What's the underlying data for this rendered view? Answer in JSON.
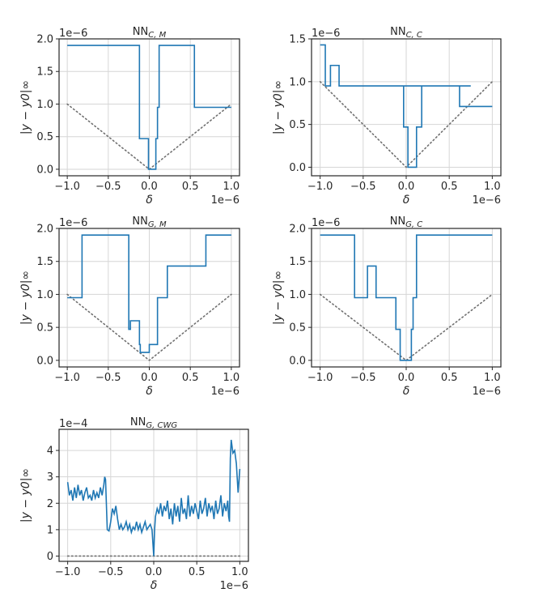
{
  "figure": {
    "background": "#ffffff",
    "line_color": "#1f77b4",
    "ref_color": "#707070",
    "grid_color": "#d6d6d6"
  },
  "chart_data": [
    {
      "id": "nn-c-m",
      "type": "line",
      "title_base": "NN",
      "title_sub": "C, M",
      "xlabel": "δ",
      "ylabel": "|y − y0|∞",
      "x_exponent": "1e−6",
      "y_exponent": "1e−6",
      "xlim": [
        -1.1,
        1.1
      ],
      "ylim": [
        -0.1,
        2.0
      ],
      "xticks": [
        -1.0,
        -0.5,
        0.0,
        0.5,
        1.0
      ],
      "xtick_labels": [
        "−1.0",
        "−0.5",
        "0.0",
        "0.5",
        "1.0"
      ],
      "yticks": [
        0.0,
        0.5,
        1.0,
        1.5,
        2.0
      ],
      "ytick_labels": [
        "0.0",
        "0.5",
        "1.0",
        "1.5",
        "2.0"
      ],
      "series": [
        {
          "x": [
            -1.0,
            -0.12,
            -0.12,
            -0.01,
            -0.01,
            0.08,
            0.08,
            0.1,
            0.1,
            0.12,
            0.12,
            0.55,
            0.55,
            1.0
          ],
          "y": [
            1.9,
            1.9,
            0.47,
            0.47,
            0.0,
            0.0,
            0.47,
            0.47,
            0.95,
            0.95,
            1.9,
            1.9,
            0.95,
            0.95
          ]
        }
      ],
      "reference": {
        "x": [
          -1.0,
          0.0,
          1.0
        ],
        "y": [
          1.0,
          0.0,
          1.0
        ],
        "style": "dotted"
      }
    },
    {
      "id": "nn-c-c",
      "type": "line",
      "title_base": "NN",
      "title_sub": "C, C",
      "xlabel": "δ",
      "ylabel": "|y − y0|∞",
      "x_exponent": "1e−6",
      "y_exponent": "1e−6",
      "xlim": [
        -1.1,
        1.1
      ],
      "ylim": [
        -0.1,
        1.5
      ],
      "xticks": [
        -1.0,
        -0.5,
        0.0,
        0.5,
        1.0
      ],
      "xtick_labels": [
        "−1.0",
        "−0.5",
        "0.0",
        "0.5",
        "1.0"
      ],
      "yticks": [
        0.0,
        0.5,
        1.0,
        1.5
      ],
      "ytick_labels": [
        "0.0",
        "0.5",
        "1.0",
        "1.5"
      ],
      "series": [
        {
          "x": [
            -1.0,
            -0.94,
            -0.94,
            -0.88,
            -0.88,
            -0.78,
            -0.78,
            0.75,
            -0.03,
            -0.03,
            0.02,
            0.02,
            0.12,
            0.12,
            0.18,
            0.18,
            0.62,
            0.62,
            1.0
          ],
          "y": [
            1.43,
            1.43,
            0.95,
            0.95,
            1.19,
            1.19,
            0.95,
            0.95,
            0.95,
            0.47,
            0.47,
            0.0,
            0.0,
            0.47,
            0.47,
            0.95,
            0.95,
            0.71,
            0.71
          ]
        }
      ],
      "reference": {
        "x": [
          -1.0,
          0.0,
          1.0
        ],
        "y": [
          1.0,
          0.0,
          1.0
        ],
        "style": "dotted"
      }
    },
    {
      "id": "nn-g-m",
      "type": "line",
      "title_base": "NN",
      "title_sub": "G, M",
      "xlabel": "δ",
      "ylabel": "|y − y0|∞",
      "x_exponent": "1e−6",
      "y_exponent": "1e−6",
      "xlim": [
        -1.1,
        1.1
      ],
      "ylim": [
        -0.1,
        2.0
      ],
      "xticks": [
        -1.0,
        -0.5,
        0.0,
        0.5,
        1.0
      ],
      "xtick_labels": [
        "−1.0",
        "−0.5",
        "0.0",
        "0.5",
        "1.0"
      ],
      "yticks": [
        0.0,
        0.5,
        1.0,
        1.5,
        2.0
      ],
      "ytick_labels": [
        "0.0",
        "0.5",
        "1.0",
        "1.5",
        "2.0"
      ],
      "series": [
        {
          "x": [
            -1.0,
            -0.98,
            -0.98,
            -0.82,
            -0.82,
            -0.25,
            -0.25,
            -0.23,
            -0.23,
            -0.12,
            -0.12,
            -0.11,
            -0.11,
            0.0,
            0.0,
            0.1,
            0.1,
            0.12,
            0.12,
            0.22,
            0.22,
            0.69,
            0.69,
            1.0
          ],
          "y": [
            0.95,
            0.95,
            0.95,
            0.95,
            1.9,
            1.9,
            0.47,
            0.47,
            0.6,
            0.6,
            0.24,
            0.24,
            0.12,
            0.12,
            0.24,
            0.24,
            0.95,
            0.95,
            0.95,
            0.95,
            1.43,
            1.43,
            1.9,
            1.9
          ]
        }
      ],
      "reference": {
        "x": [
          -1.0,
          0.0,
          1.0
        ],
        "y": [
          1.0,
          0.0,
          1.0
        ],
        "style": "dotted"
      }
    },
    {
      "id": "nn-g-c",
      "type": "line",
      "title_base": "NN",
      "title_sub": "G, C",
      "xlabel": "δ",
      "ylabel": "|y − y0|∞",
      "x_exponent": "1e−6",
      "y_exponent": "1e−6",
      "xlim": [
        -1.1,
        1.1
      ],
      "ylim": [
        -0.1,
        2.0
      ],
      "xticks": [
        -1.0,
        -0.5,
        0.0,
        0.5,
        1.0
      ],
      "xtick_labels": [
        "−1.0",
        "−0.5",
        "0.0",
        "0.5",
        "1.0"
      ],
      "yticks": [
        0.0,
        0.5,
        1.0,
        1.5,
        2.0
      ],
      "ytick_labels": [
        "0.0",
        "0.5",
        "1.0",
        "1.5",
        "2.0"
      ],
      "series": [
        {
          "x": [
            -1.0,
            -0.6,
            -0.6,
            -0.45,
            -0.45,
            -0.35,
            -0.35,
            -0.12,
            -0.12,
            -0.07,
            -0.07,
            -0.04,
            -0.04,
            0.06,
            0.06,
            0.08,
            0.08,
            0.12,
            0.12,
            1.0
          ],
          "y": [
            1.9,
            1.9,
            0.95,
            0.95,
            1.43,
            1.43,
            0.95,
            0.95,
            0.47,
            0.47,
            0.0,
            0.0,
            0.0,
            0.0,
            0.47,
            0.47,
            0.95,
            0.95,
            1.9,
            1.9
          ]
        }
      ],
      "reference": {
        "x": [
          -1.0,
          0.0,
          1.0
        ],
        "y": [
          1.0,
          0.0,
          1.0
        ],
        "style": "dotted"
      }
    },
    {
      "id": "nn-g-cwg",
      "type": "line",
      "title_base": "NN",
      "title_sub": "G, CWG",
      "xlabel": "δ",
      "ylabel": "|y − y0|∞",
      "x_exponent": "1e−6",
      "y_exponent": "1e−4",
      "xlim": [
        -1.1,
        1.1
      ],
      "ylim": [
        -0.2,
        4.8
      ],
      "xticks": [
        -1.0,
        -0.5,
        0.0,
        0.5,
        1.0
      ],
      "xtick_labels": [
        "−1.0",
        "−0.5",
        "0.0",
        "0.5",
        "1.0"
      ],
      "yticks": [
        0,
        1,
        2,
        3,
        4
      ],
      "ytick_labels": [
        "0",
        "1",
        "2",
        "3",
        "4"
      ],
      "series": [
        {
          "x": [
            -1.0,
            -0.98,
            -0.96,
            -0.94,
            -0.92,
            -0.9,
            -0.88,
            -0.86,
            -0.84,
            -0.82,
            -0.8,
            -0.78,
            -0.76,
            -0.74,
            -0.72,
            -0.7,
            -0.68,
            -0.66,
            -0.64,
            -0.62,
            -0.6,
            -0.58,
            -0.57,
            -0.56,
            -0.54,
            -0.52,
            -0.5,
            -0.48,
            -0.46,
            -0.44,
            -0.42,
            -0.4,
            -0.38,
            -0.36,
            -0.34,
            -0.32,
            -0.3,
            -0.28,
            -0.26,
            -0.24,
            -0.22,
            -0.2,
            -0.18,
            -0.16,
            -0.14,
            -0.12,
            -0.1,
            -0.08,
            -0.06,
            -0.04,
            -0.02,
            0.0,
            0.01,
            0.02,
            0.04,
            0.06,
            0.08,
            0.1,
            0.12,
            0.14,
            0.16,
            0.18,
            0.2,
            0.22,
            0.24,
            0.26,
            0.28,
            0.3,
            0.32,
            0.34,
            0.36,
            0.38,
            0.4,
            0.42,
            0.44,
            0.46,
            0.48,
            0.5,
            0.52,
            0.54,
            0.56,
            0.58,
            0.6,
            0.62,
            0.64,
            0.66,
            0.68,
            0.7,
            0.72,
            0.74,
            0.76,
            0.78,
            0.8,
            0.82,
            0.84,
            0.86,
            0.87,
            0.88,
            0.89,
            0.9,
            0.92,
            0.94,
            0.96,
            0.98,
            1.0
          ],
          "y": [
            2.8,
            2.3,
            2.5,
            2.1,
            2.6,
            2.2,
            2.7,
            2.3,
            2.5,
            2.1,
            2.4,
            2.6,
            2.2,
            2.3,
            2.1,
            2.5,
            2.2,
            2.4,
            2.2,
            2.6,
            2.3,
            2.7,
            3.0,
            2.9,
            1.0,
            0.95,
            1.3,
            1.8,
            1.6,
            1.9,
            1.4,
            1.0,
            1.2,
            1.0,
            1.1,
            1.3,
            1.0,
            1.2,
            0.9,
            1.1,
            1.0,
            1.3,
            1.0,
            1.2,
            0.9,
            1.1,
            1.3,
            1.0,
            1.1,
            1.2,
            1.0,
            0.0,
            1.0,
            1.5,
            1.8,
            1.6,
            2.0,
            1.5,
            1.9,
            1.7,
            2.1,
            1.4,
            1.8,
            1.2,
            2.0,
            1.5,
            1.9,
            1.3,
            2.2,
            1.6,
            1.8,
            1.4,
            2.3,
            1.5,
            1.9,
            1.6,
            2.0,
            1.7,
            1.4,
            2.1,
            1.6,
            1.8,
            2.2,
            1.5,
            2.0,
            1.7,
            1.9,
            1.4,
            2.1,
            1.6,
            1.8,
            2.3,
            1.5,
            2.0,
            1.7,
            2.1,
            1.5,
            1.3,
            3.7,
            4.4,
            3.9,
            4.0,
            3.5,
            2.4,
            3.3
          ]
        }
      ],
      "reference": {
        "x": [
          -1.0,
          0.0,
          1.0
        ],
        "y": [
          0.0,
          0.0,
          0.0
        ],
        "style": "dotted"
      }
    }
  ]
}
